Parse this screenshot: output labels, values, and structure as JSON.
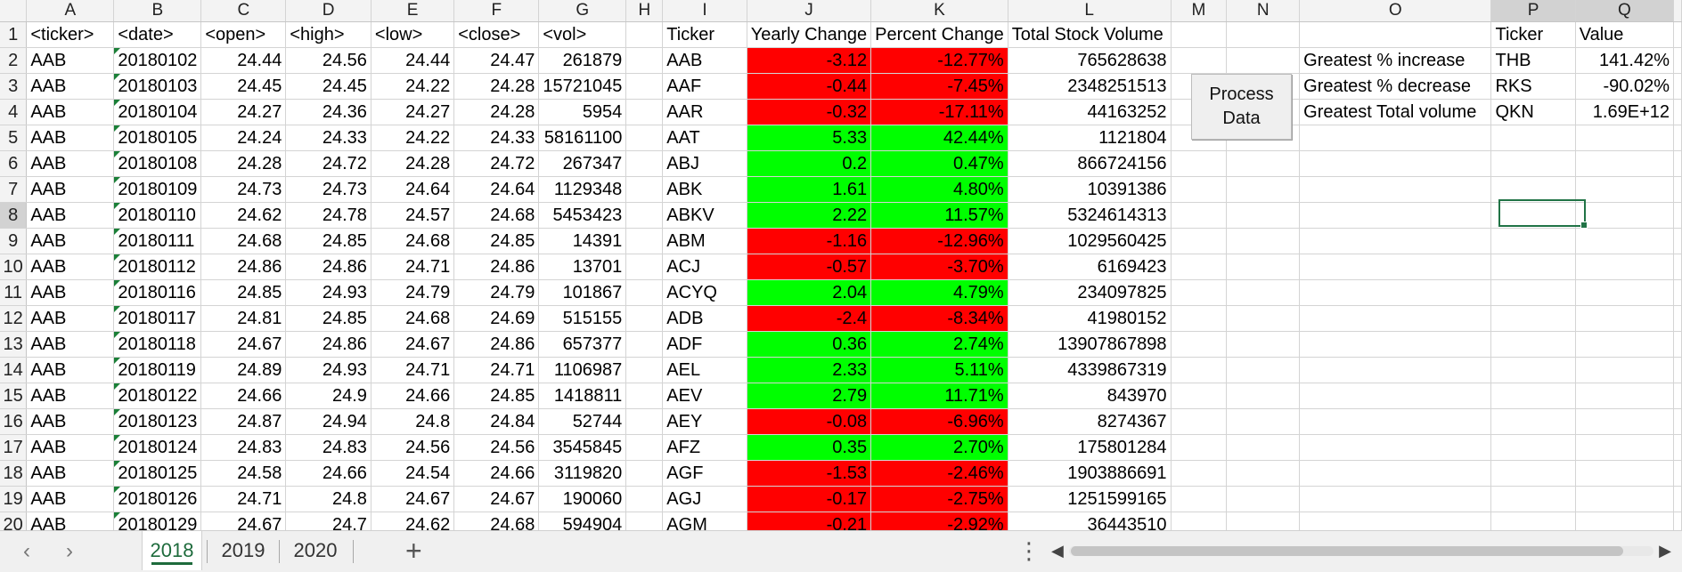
{
  "columns": [
    "A",
    "B",
    "C",
    "D",
    "E",
    "F",
    "G",
    "H",
    "I",
    "J",
    "K",
    "L",
    "M",
    "N",
    "O",
    "P",
    "Q"
  ],
  "headers": [
    "<ticker>",
    "<date>",
    "<open>",
    "<high>",
    "<low>",
    "<close>",
    "<vol>",
    "",
    "Ticker",
    "Yearly Change",
    "Percent Change",
    "Total Stock Volume",
    "",
    "",
    "",
    "Ticker",
    "Value"
  ],
  "rows": [
    {
      "r": "2",
      "a": "AAB",
      "b": "20180102",
      "c": "24.44",
      "d": "24.56",
      "e": "24.44",
      "f": "24.47",
      "g": "261879",
      "i": "AAB",
      "j": "-3.12",
      "k": "-12.77%",
      "l": "765628638",
      "o": "Greatest % increase",
      "p": "THB",
      "q": "141.42%"
    },
    {
      "r": "3",
      "a": "AAB",
      "b": "20180103",
      "c": "24.45",
      "d": "24.45",
      "e": "24.22",
      "f": "24.28",
      "g": "15721045",
      "i": "AAF",
      "j": "-0.44",
      "k": "-7.45%",
      "l": "2348251513",
      "o": "Greatest % decrease",
      "p": "RKS",
      "q": "-90.02%"
    },
    {
      "r": "4",
      "a": "AAB",
      "b": "20180104",
      "c": "24.27",
      "d": "24.36",
      "e": "24.27",
      "f": "24.28",
      "g": "5954",
      "i": "AAR",
      "j": "-0.32",
      "k": "-17.11%",
      "l": "44163252",
      "o": "Greatest Total volume",
      "p": "QKN",
      "q": "1.69E+12"
    },
    {
      "r": "5",
      "a": "AAB",
      "b": "20180105",
      "c": "24.24",
      "d": "24.33",
      "e": "24.22",
      "f": "24.33",
      "g": "58161100",
      "i": "AAT",
      "j": "5.33",
      "k": "42.44%",
      "l": "1121804",
      "o": "",
      "p": "",
      "q": ""
    },
    {
      "r": "6",
      "a": "AAB",
      "b": "20180108",
      "c": "24.28",
      "d": "24.72",
      "e": "24.28",
      "f": "24.72",
      "g": "267347",
      "i": "ABJ",
      "j": "0.2",
      "k": "0.47%",
      "l": "866724156",
      "o": "",
      "p": "",
      "q": ""
    },
    {
      "r": "7",
      "a": "AAB",
      "b": "20180109",
      "c": "24.73",
      "d": "24.73",
      "e": "24.64",
      "f": "24.64",
      "g": "1129348",
      "i": "ABK",
      "j": "1.61",
      "k": "4.80%",
      "l": "10391386",
      "o": "",
      "p": "",
      "q": ""
    },
    {
      "r": "8",
      "a": "AAB",
      "b": "20180110",
      "c": "24.62",
      "d": "24.78",
      "e": "24.57",
      "f": "24.68",
      "g": "5453423",
      "i": "ABKV",
      "j": "2.22",
      "k": "11.57%",
      "l": "5324614313",
      "o": "",
      "p": "",
      "q": ""
    },
    {
      "r": "9",
      "a": "AAB",
      "b": "20180111",
      "c": "24.68",
      "d": "24.85",
      "e": "24.68",
      "f": "24.85",
      "g": "14391",
      "i": "ABM",
      "j": "-1.16",
      "k": "-12.96%",
      "l": "1029560425",
      "o": "",
      "p": "",
      "q": ""
    },
    {
      "r": "10",
      "a": "AAB",
      "b": "20180112",
      "c": "24.86",
      "d": "24.86",
      "e": "24.71",
      "f": "24.86",
      "g": "13701",
      "i": "ACJ",
      "j": "-0.57",
      "k": "-3.70%",
      "l": "6169423",
      "o": "",
      "p": "",
      "q": ""
    },
    {
      "r": "11",
      "a": "AAB",
      "b": "20180116",
      "c": "24.85",
      "d": "24.93",
      "e": "24.79",
      "f": "24.79",
      "g": "101867",
      "i": "ACYQ",
      "j": "2.04",
      "k": "4.79%",
      "l": "234097825",
      "o": "",
      "p": "",
      "q": ""
    },
    {
      "r": "12",
      "a": "AAB",
      "b": "20180117",
      "c": "24.81",
      "d": "24.85",
      "e": "24.68",
      "f": "24.69",
      "g": "515155",
      "i": "ADB",
      "j": "-2.4",
      "k": "-8.34%",
      "l": "41980152",
      "o": "",
      "p": "",
      "q": ""
    },
    {
      "r": "13",
      "a": "AAB",
      "b": "20180118",
      "c": "24.67",
      "d": "24.86",
      "e": "24.67",
      "f": "24.86",
      "g": "657377",
      "i": "ADF",
      "j": "0.36",
      "k": "2.74%",
      "l": "13907867898",
      "o": "",
      "p": "",
      "q": ""
    },
    {
      "r": "14",
      "a": "AAB",
      "b": "20180119",
      "c": "24.89",
      "d": "24.93",
      "e": "24.71",
      "f": "24.71",
      "g": "1106987",
      "i": "AEL",
      "j": "2.33",
      "k": "5.11%",
      "l": "4339867319",
      "o": "",
      "p": "",
      "q": ""
    },
    {
      "r": "15",
      "a": "AAB",
      "b": "20180122",
      "c": "24.66",
      "d": "24.9",
      "e": "24.66",
      "f": "24.85",
      "g": "1418811",
      "i": "AEV",
      "j": "2.79",
      "k": "11.71%",
      "l": "843970",
      "o": "",
      "p": "",
      "q": ""
    },
    {
      "r": "16",
      "a": "AAB",
      "b": "20180123",
      "c": "24.87",
      "d": "24.94",
      "e": "24.8",
      "f": "24.84",
      "g": "52744",
      "i": "AEY",
      "j": "-0.08",
      "k": "-6.96%",
      "l": "8274367",
      "o": "",
      "p": "",
      "q": ""
    },
    {
      "r": "17",
      "a": "AAB",
      "b": "20180124",
      "c": "24.83",
      "d": "24.83",
      "e": "24.56",
      "f": "24.56",
      "g": "3545845",
      "i": "AFZ",
      "j": "0.35",
      "k": "2.70%",
      "l": "175801284",
      "o": "",
      "p": "",
      "q": ""
    },
    {
      "r": "18",
      "a": "AAB",
      "b": "20180125",
      "c": "24.58",
      "d": "24.66",
      "e": "24.54",
      "f": "24.66",
      "g": "3119820",
      "i": "AGF",
      "j": "-1.53",
      "k": "-2.46%",
      "l": "1903886691",
      "o": "",
      "p": "",
      "q": ""
    },
    {
      "r": "19",
      "a": "AAB",
      "b": "20180126",
      "c": "24.71",
      "d": "24.8",
      "e": "24.67",
      "f": "24.67",
      "g": "190060",
      "i": "AGJ",
      "j": "-0.17",
      "k": "-2.75%",
      "l": "1251599165",
      "o": "",
      "p": "",
      "q": ""
    },
    {
      "r": "20",
      "a": "AAB",
      "b": "20180129",
      "c": "24.67",
      "d": "24.7",
      "e": "24.62",
      "f": "24.68",
      "g": "594904",
      "i": "AGM",
      "j": "-0.21",
      "k": "-2.92%",
      "l": "36443510",
      "o": "",
      "p": "",
      "q": ""
    }
  ],
  "button": {
    "label_line1": "Process",
    "label_line2": "Data"
  },
  "sheet_tabs": [
    "2018",
    "2019",
    "2020"
  ],
  "active_tab": "2018",
  "nav": {
    "prev_icon": "chevron-left-icon",
    "next_icon": "chevron-right-icon",
    "add_icon": "plus-icon",
    "more_icon": "more-vertical-icon"
  },
  "colors": {
    "positive": "#00ff00",
    "negative": "#ff0000",
    "accent": "#1e6b3c",
    "selection": "#217346"
  }
}
